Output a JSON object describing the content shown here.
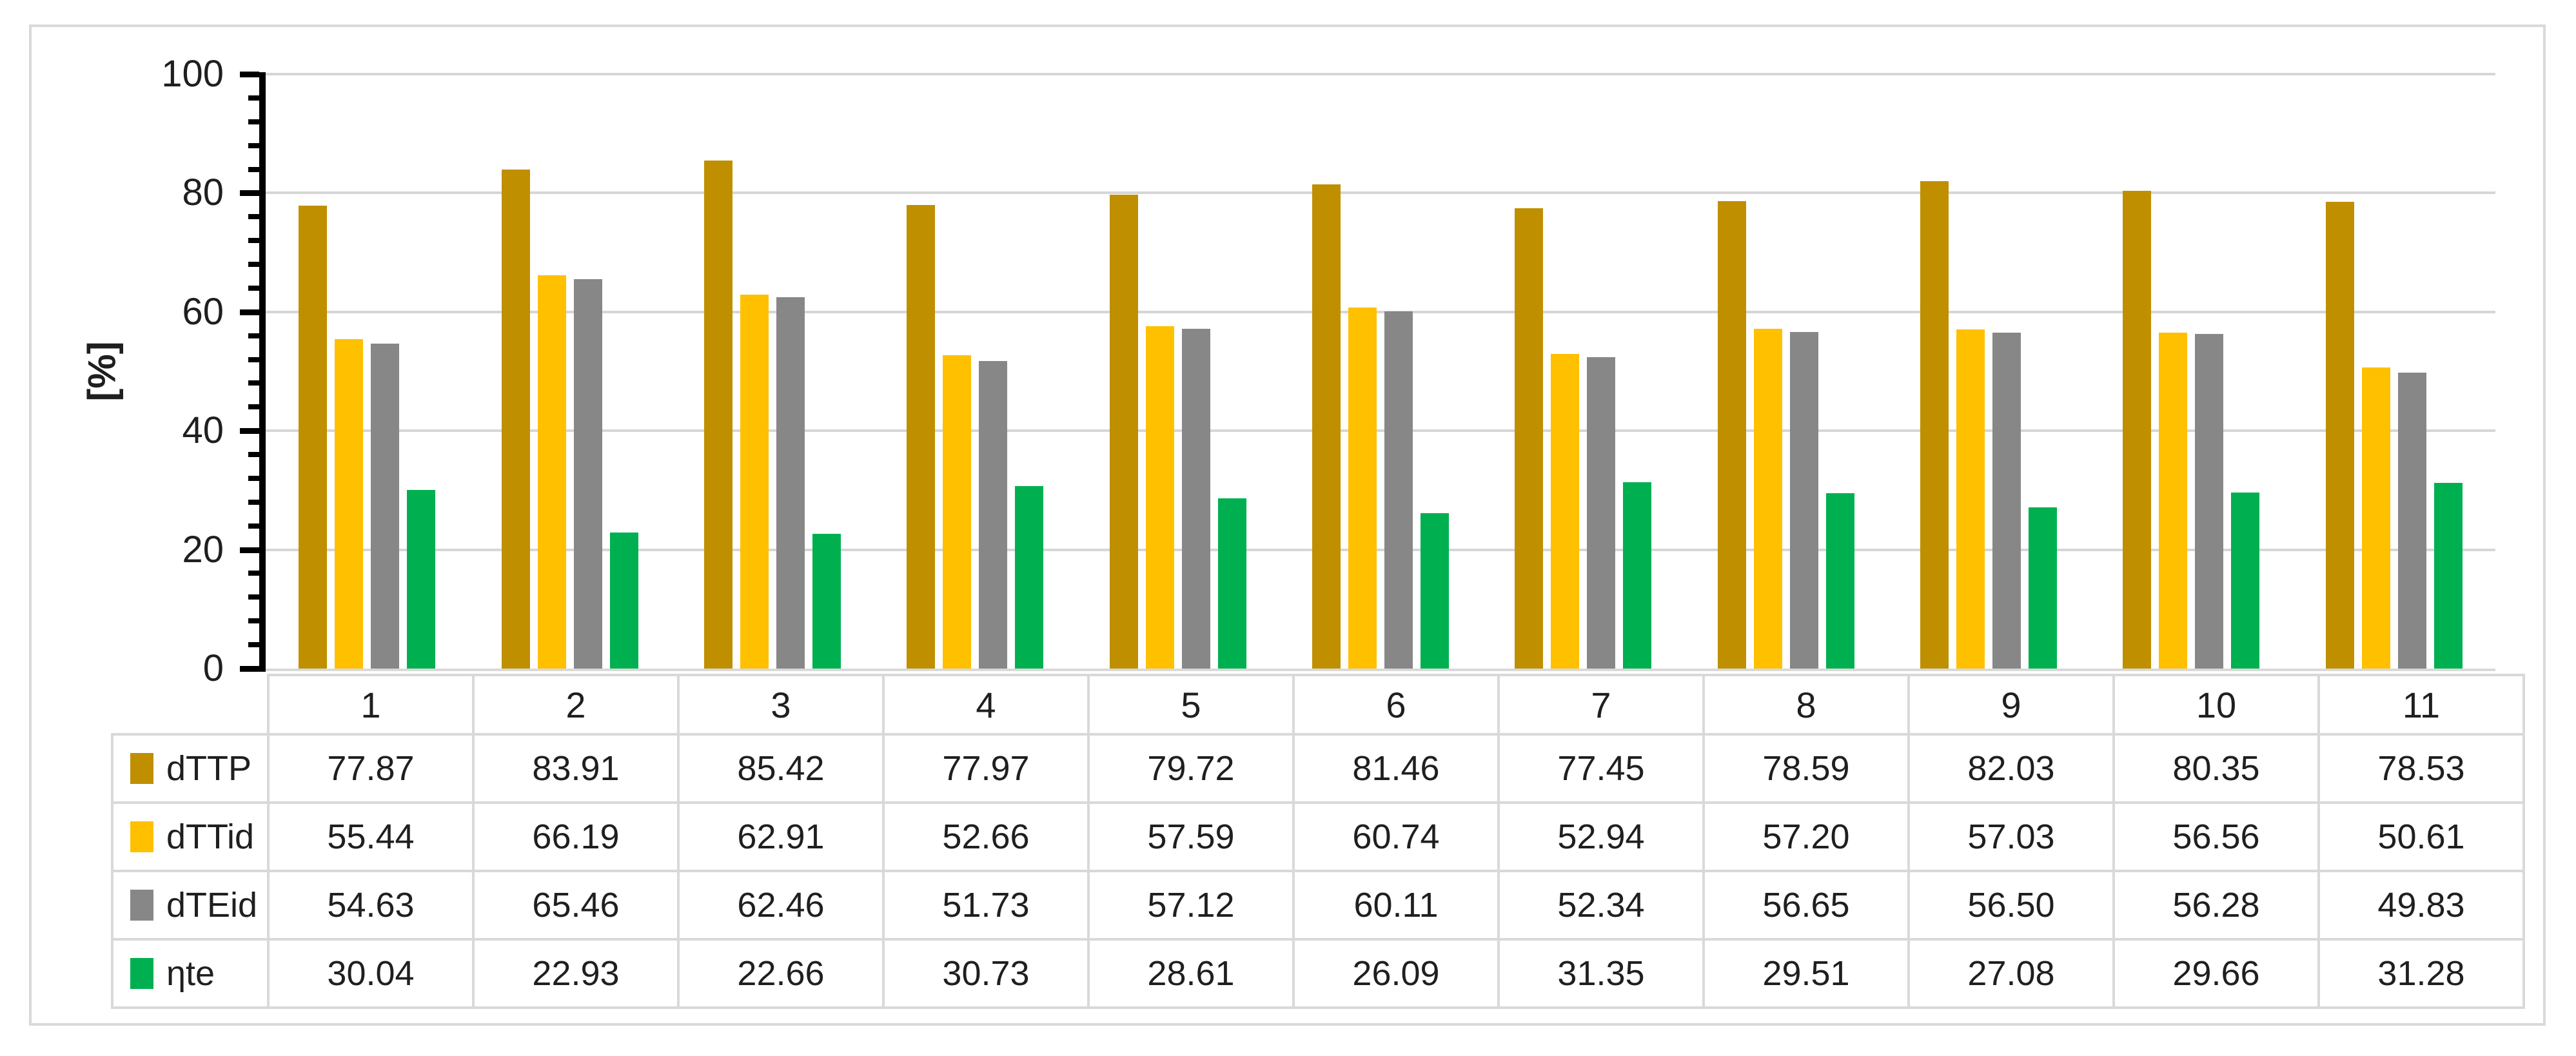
{
  "figure": {
    "frame_color": "#d9d9d9",
    "background_color": "#ffffff"
  },
  "chart_data": {
    "type": "bar",
    "title": "",
    "xlabel": "",
    "ylabel": "[%]",
    "ylim": [
      0,
      100
    ],
    "y_major_ticks": [
      0,
      20,
      40,
      60,
      80,
      100
    ],
    "y_minor_unit": 4,
    "grid": true,
    "gridline_color": "#d6d6d6",
    "axis_color": "#000000",
    "text_color": "#1f1f1f",
    "table_border_color": "#d9d9d9",
    "legend_position": "data-table-left-column",
    "categories": [
      "1",
      "2",
      "3",
      "4",
      "5",
      "6",
      "7",
      "8",
      "9",
      "10",
      "11"
    ],
    "series": [
      {
        "name": "dTTP",
        "color": "#BF8F00",
        "values": [
          "77.87",
          "83.91",
          "85.42",
          "77.97",
          "79.72",
          "81.46",
          "77.45",
          "78.59",
          "82.03",
          "80.35",
          "78.53"
        ]
      },
      {
        "name": "dTTid",
        "color": "#FFC000",
        "values": [
          "55.44",
          "66.19",
          "62.91",
          "52.66",
          "57.59",
          "60.74",
          "52.94",
          "57.20",
          "57.03",
          "56.56",
          "50.61"
        ]
      },
      {
        "name": "dTEid",
        "color": "#878787",
        "values": [
          "54.63",
          "65.46",
          "62.46",
          "51.73",
          "57.12",
          "60.11",
          "52.34",
          "56.65",
          "56.50",
          "56.28",
          "49.83"
        ]
      },
      {
        "name": "ηte",
        "color": "#00B050",
        "values": [
          "30.04",
          "22.93",
          "22.66",
          "30.73",
          "28.61",
          "26.09",
          "31.35",
          "29.51",
          "27.08",
          "29.66",
          "31.28"
        ]
      }
    ]
  }
}
